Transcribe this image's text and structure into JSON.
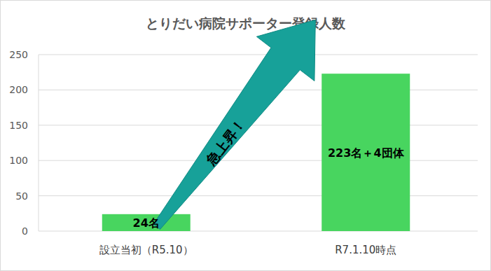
{
  "chart_data": {
    "type": "bar",
    "title": "とりだい病院サポーター登録人数",
    "categories": [
      "設立当初（R5.10）",
      "R7.1.10時点"
    ],
    "values": [
      24,
      223
    ],
    "value_labels": [
      "24名",
      "223名＋4団体"
    ],
    "data_labels": true,
    "color": "#48d55f",
    "ylim": [
      0,
      250
    ],
    "yticks": [
      0,
      50,
      100,
      150,
      200,
      250
    ],
    "grid": true,
    "annotation": "急上昇！"
  }
}
